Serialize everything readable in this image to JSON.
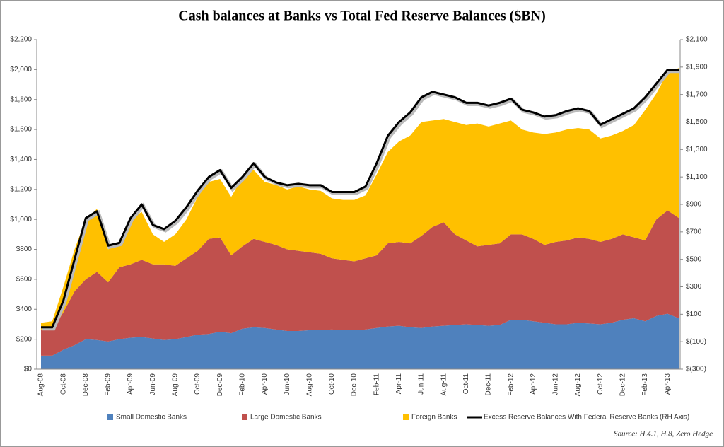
{
  "chart_data": {
    "type": "stacked_area_line",
    "title": "Cash balances at Banks vs Total Fed Reserve Balances ($BN)",
    "source": "Source: H.4.1, H.8, Zero Hedge",
    "categories": [
      "Aug-08",
      null,
      "Oct-08",
      null,
      "Dec-08",
      null,
      "Feb-09",
      null,
      "Apr-09",
      null,
      "Jun-09",
      null,
      "Aug-09",
      null,
      "Oct-09",
      null,
      "Dec-09",
      null,
      "Feb-10",
      null,
      "Apr-10",
      null,
      "Jun-10",
      null,
      "Aug-10",
      null,
      "Oct-10",
      null,
      "Dec-10",
      null,
      "Feb-11",
      null,
      "Apr-11",
      null,
      "Jun-11",
      null,
      "Aug-11",
      null,
      "Oct-11",
      null,
      "Dec-11",
      null,
      "Feb-12",
      null,
      "Apr-12",
      null,
      "Jun-12",
      null,
      "Aug-12",
      null,
      "Oct-12",
      null,
      "Dec-12",
      null,
      "Feb-13",
      null,
      "Apr-13",
      null
    ],
    "series": [
      {
        "name": "Small Domestic Banks",
        "color": "#4f81bd",
        "values": [
          90,
          90,
          130,
          160,
          200,
          195,
          185,
          200,
          210,
          215,
          205,
          195,
          200,
          215,
          230,
          235,
          250,
          240,
          270,
          280,
          275,
          265,
          255,
          255,
          260,
          262,
          265,
          260,
          260,
          265,
          275,
          285,
          290,
          280,
          275,
          285,
          290,
          295,
          300,
          295,
          290,
          295,
          330,
          330,
          320,
          310,
          300,
          300,
          310,
          305,
          300,
          310,
          330,
          340,
          320,
          355,
          370,
          340
        ]
      },
      {
        "name": "Large Domestic Banks",
        "color": "#c0504d",
        "values": [
          170,
          170,
          250,
          360,
          400,
          455,
          395,
          480,
          490,
          515,
          495,
          505,
          490,
          525,
          560,
          635,
          630,
          520,
          550,
          590,
          575,
          565,
          545,
          535,
          520,
          508,
          475,
          470,
          460,
          475,
          485,
          555,
          560,
          560,
          615,
          665,
          690,
          605,
          560,
          525,
          540,
          545,
          570,
          570,
          550,
          520,
          550,
          560,
          570,
          565,
          550,
          560,
          570,
          540,
          540,
          645,
          690,
          670
        ]
      },
      {
        "name": "Foreign Banks",
        "color": "#ffc000",
        "values": [
          50,
          60,
          170,
          280,
          400,
          420,
          220,
          170,
          300,
          320,
          200,
          150,
          210,
          260,
          360,
          380,
          390,
          390,
          460,
          460,
          400,
          400,
          400,
          430,
          420,
          420,
          400,
          400,
          410,
          420,
          540,
          610,
          670,
          720,
          760,
          710,
          690,
          750,
          770,
          820,
          790,
          800,
          760,
          700,
          710,
          740,
          730,
          740,
          730,
          730,
          690,
          690,
          690,
          750,
          870,
          840,
          920,
          1000
        ]
      },
      {
        "name": "Excess Reserve Balances With Federal Reserve Banks (RH Axis)",
        "color": "#000000",
        "axis": "y2",
        "values": [
          5,
          5,
          200,
          500,
          800,
          850,
          600,
          620,
          800,
          900,
          750,
          720,
          780,
          880,
          1000,
          1100,
          1150,
          1020,
          1100,
          1200,
          1100,
          1060,
          1040,
          1050,
          1040,
          1040,
          990,
          990,
          990,
          1030,
          1200,
          1400,
          1500,
          1570,
          1680,
          1720,
          1700,
          1680,
          1640,
          1640,
          1620,
          1640,
          1670,
          1590,
          1570,
          1540,
          1550,
          1580,
          1600,
          1580,
          1480,
          1520,
          1560,
          1600,
          1680,
          1780,
          1880,
          1880
        ]
      }
    ],
    "ylim": [
      0,
      2200
    ],
    "yticks": [
      {
        "value": 0,
        "label": "$0"
      },
      {
        "value": 200,
        "label": "$200"
      },
      {
        "value": 400,
        "label": "$400"
      },
      {
        "value": 600,
        "label": "$600"
      },
      {
        "value": 800,
        "label": "$800"
      },
      {
        "value": 1000,
        "label": "$1,000"
      },
      {
        "value": 1200,
        "label": "$1,200"
      },
      {
        "value": 1400,
        "label": "$1,400"
      },
      {
        "value": 1600,
        "label": "$1,600"
      },
      {
        "value": 1800,
        "label": "$1,800"
      },
      {
        "value": 2000,
        "label": "$2,000"
      },
      {
        "value": 2200,
        "label": "$2,200"
      }
    ],
    "y2lim": [
      -300,
      2100
    ],
    "y2ticks": [
      {
        "value": -300,
        "label": "$(300)"
      },
      {
        "value": -100,
        "label": "$(100)"
      },
      {
        "value": 100,
        "label": "$100"
      },
      {
        "value": 300,
        "label": "$300"
      },
      {
        "value": 500,
        "label": "$500"
      },
      {
        "value": 700,
        "label": "$700"
      },
      {
        "value": 900,
        "label": "$900"
      },
      {
        "value": 1100,
        "label": "$1,100"
      },
      {
        "value": 1300,
        "label": "$1,300"
      },
      {
        "value": 1500,
        "label": "$1,500"
      },
      {
        "value": 1700,
        "label": "$1,700"
      },
      {
        "value": 1900,
        "label": "$1,900"
      },
      {
        "value": 2100,
        "label": "$2,100"
      }
    ],
    "legend": "bottom"
  }
}
